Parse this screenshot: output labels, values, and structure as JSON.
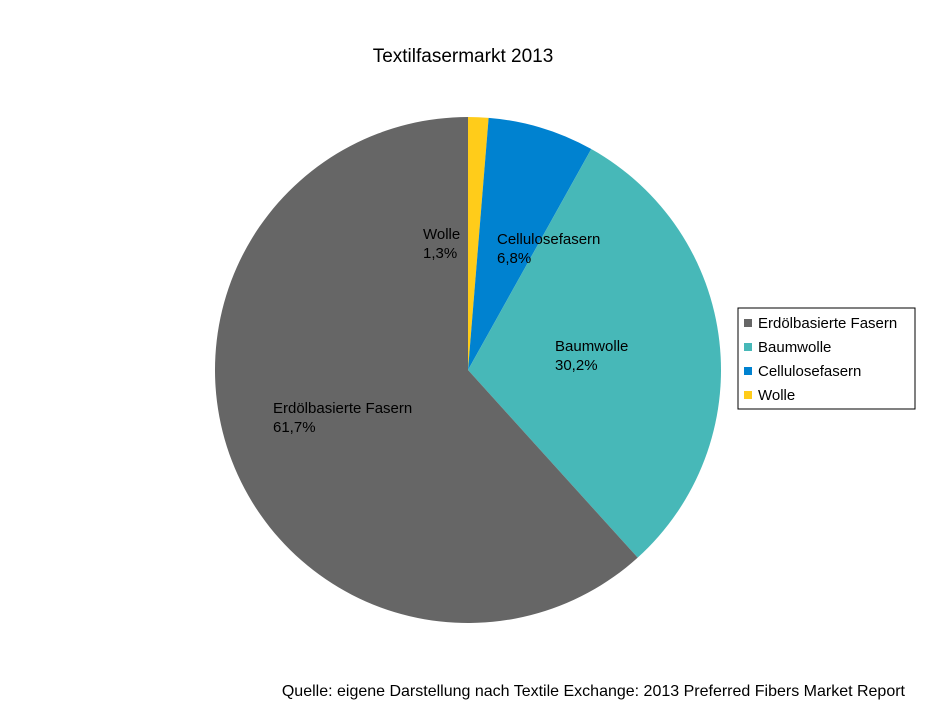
{
  "chart_data": {
    "type": "pie",
    "title": "Textilfasermarkt 2013",
    "slices": [
      {
        "name": "Wolle",
        "value": 1.3,
        "label": "1,3%",
        "color": "#ffcc1a"
      },
      {
        "name": "Cellulosefasern",
        "value": 6.8,
        "label": "6,8%",
        "color": "#0082d0"
      },
      {
        "name": "Baumwolle",
        "value": 30.2,
        "label": "30,2%",
        "color": "#47b8b8"
      },
      {
        "name": "Erdölbasierte Fasern",
        "value": 61.7,
        "label": "61,7%",
        "color": "#666666"
      }
    ],
    "legend": {
      "placement": "right",
      "entries": [
        "Erdölbasierte Fasern",
        "Baumwolle",
        "Cellulosefasern",
        "Wolle"
      ]
    }
  },
  "source_note": "Quelle: eigene Darstellung nach Textile Exchange: 2013 Preferred Fibers Market Report"
}
